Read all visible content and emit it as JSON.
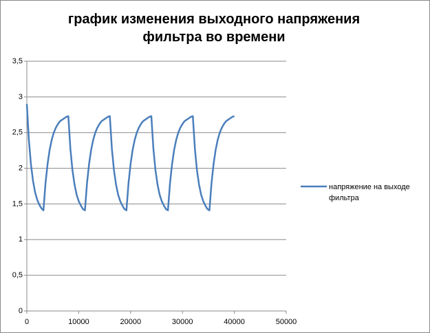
{
  "chart_data": {
    "type": "line",
    "title": "график изменения выходного напряжения фильтра во времени",
    "x": [
      0,
      400,
      800,
      1200,
      1600,
      2000,
      2400,
      2800,
      3200,
      3600,
      4000,
      4400,
      4800,
      5200,
      5600,
      6000,
      6400,
      6800,
      7200,
      7600,
      8000,
      8400,
      8800,
      9200,
      9600,
      10000,
      10400,
      10800,
      11200,
      11600,
      12000,
      12400,
      12800,
      13200,
      13600,
      14000,
      14400,
      14800,
      15200,
      15600,
      16000,
      16400,
      16800,
      17200,
      17600,
      18000,
      18400,
      18800,
      19200,
      19600,
      20000,
      20400,
      20800,
      21200,
      21600,
      22000,
      22400,
      22800,
      23200,
      23600,
      24000,
      24400,
      24800,
      25200,
      25600,
      26000,
      26400,
      26800,
      27200,
      27600,
      28000,
      28400,
      28800,
      29200,
      29600,
      30000,
      30400,
      30800,
      31200,
      31600,
      32000,
      32400,
      32800,
      33200,
      33600,
      34000,
      34400,
      34800,
      35200,
      35600,
      36000,
      36400,
      36800,
      37200,
      37600,
      38000,
      38400,
      38800,
      39200,
      39600,
      40000
    ],
    "series": [
      {
        "name": "напряжение на выходе фильтра",
        "color": "#4a7ebb",
        "values": [
          2.9,
          2.39,
          2.05,
          1.82,
          1.66,
          1.56,
          1.49,
          1.44,
          1.41,
          1.79,
          2.06,
          2.26,
          2.4,
          2.5,
          2.57,
          2.62,
          2.66,
          2.68,
          2.7,
          2.72,
          2.73,
          2.27,
          1.97,
          1.77,
          1.63,
          1.54,
          1.48,
          1.43,
          1.41,
          1.79,
          2.06,
          2.26,
          2.4,
          2.5,
          2.57,
          2.62,
          2.66,
          2.68,
          2.7,
          2.72,
          2.73,
          2.27,
          1.97,
          1.77,
          1.63,
          1.54,
          1.48,
          1.43,
          1.41,
          1.79,
          2.06,
          2.26,
          2.4,
          2.5,
          2.57,
          2.62,
          2.66,
          2.68,
          2.7,
          2.72,
          2.73,
          2.27,
          1.97,
          1.77,
          1.63,
          1.54,
          1.48,
          1.43,
          1.41,
          1.79,
          2.06,
          2.26,
          2.4,
          2.5,
          2.57,
          2.62,
          2.66,
          2.68,
          2.7,
          2.72,
          2.73,
          2.27,
          1.97,
          1.77,
          1.63,
          1.54,
          1.48,
          1.43,
          1.41,
          1.79,
          2.06,
          2.26,
          2.4,
          2.5,
          2.57,
          2.62,
          2.66,
          2.68,
          2.7,
          2.72,
          2.73
        ]
      }
    ],
    "xlim": [
      0,
      50000
    ],
    "xticks": [
      0,
      10000,
      20000,
      30000,
      40000,
      50000
    ],
    "ylim": [
      0,
      3.5
    ],
    "yticks": [
      0,
      {
        "value": 0.5,
        "label": "0,5"
      },
      1,
      {
        "value": 1.5,
        "label": "1,5"
      },
      2,
      {
        "value": 2.5,
        "label": "2,5"
      },
      3,
      {
        "value": 3.5,
        "label": "3,5"
      }
    ],
    "grid": true,
    "legend": "right"
  }
}
